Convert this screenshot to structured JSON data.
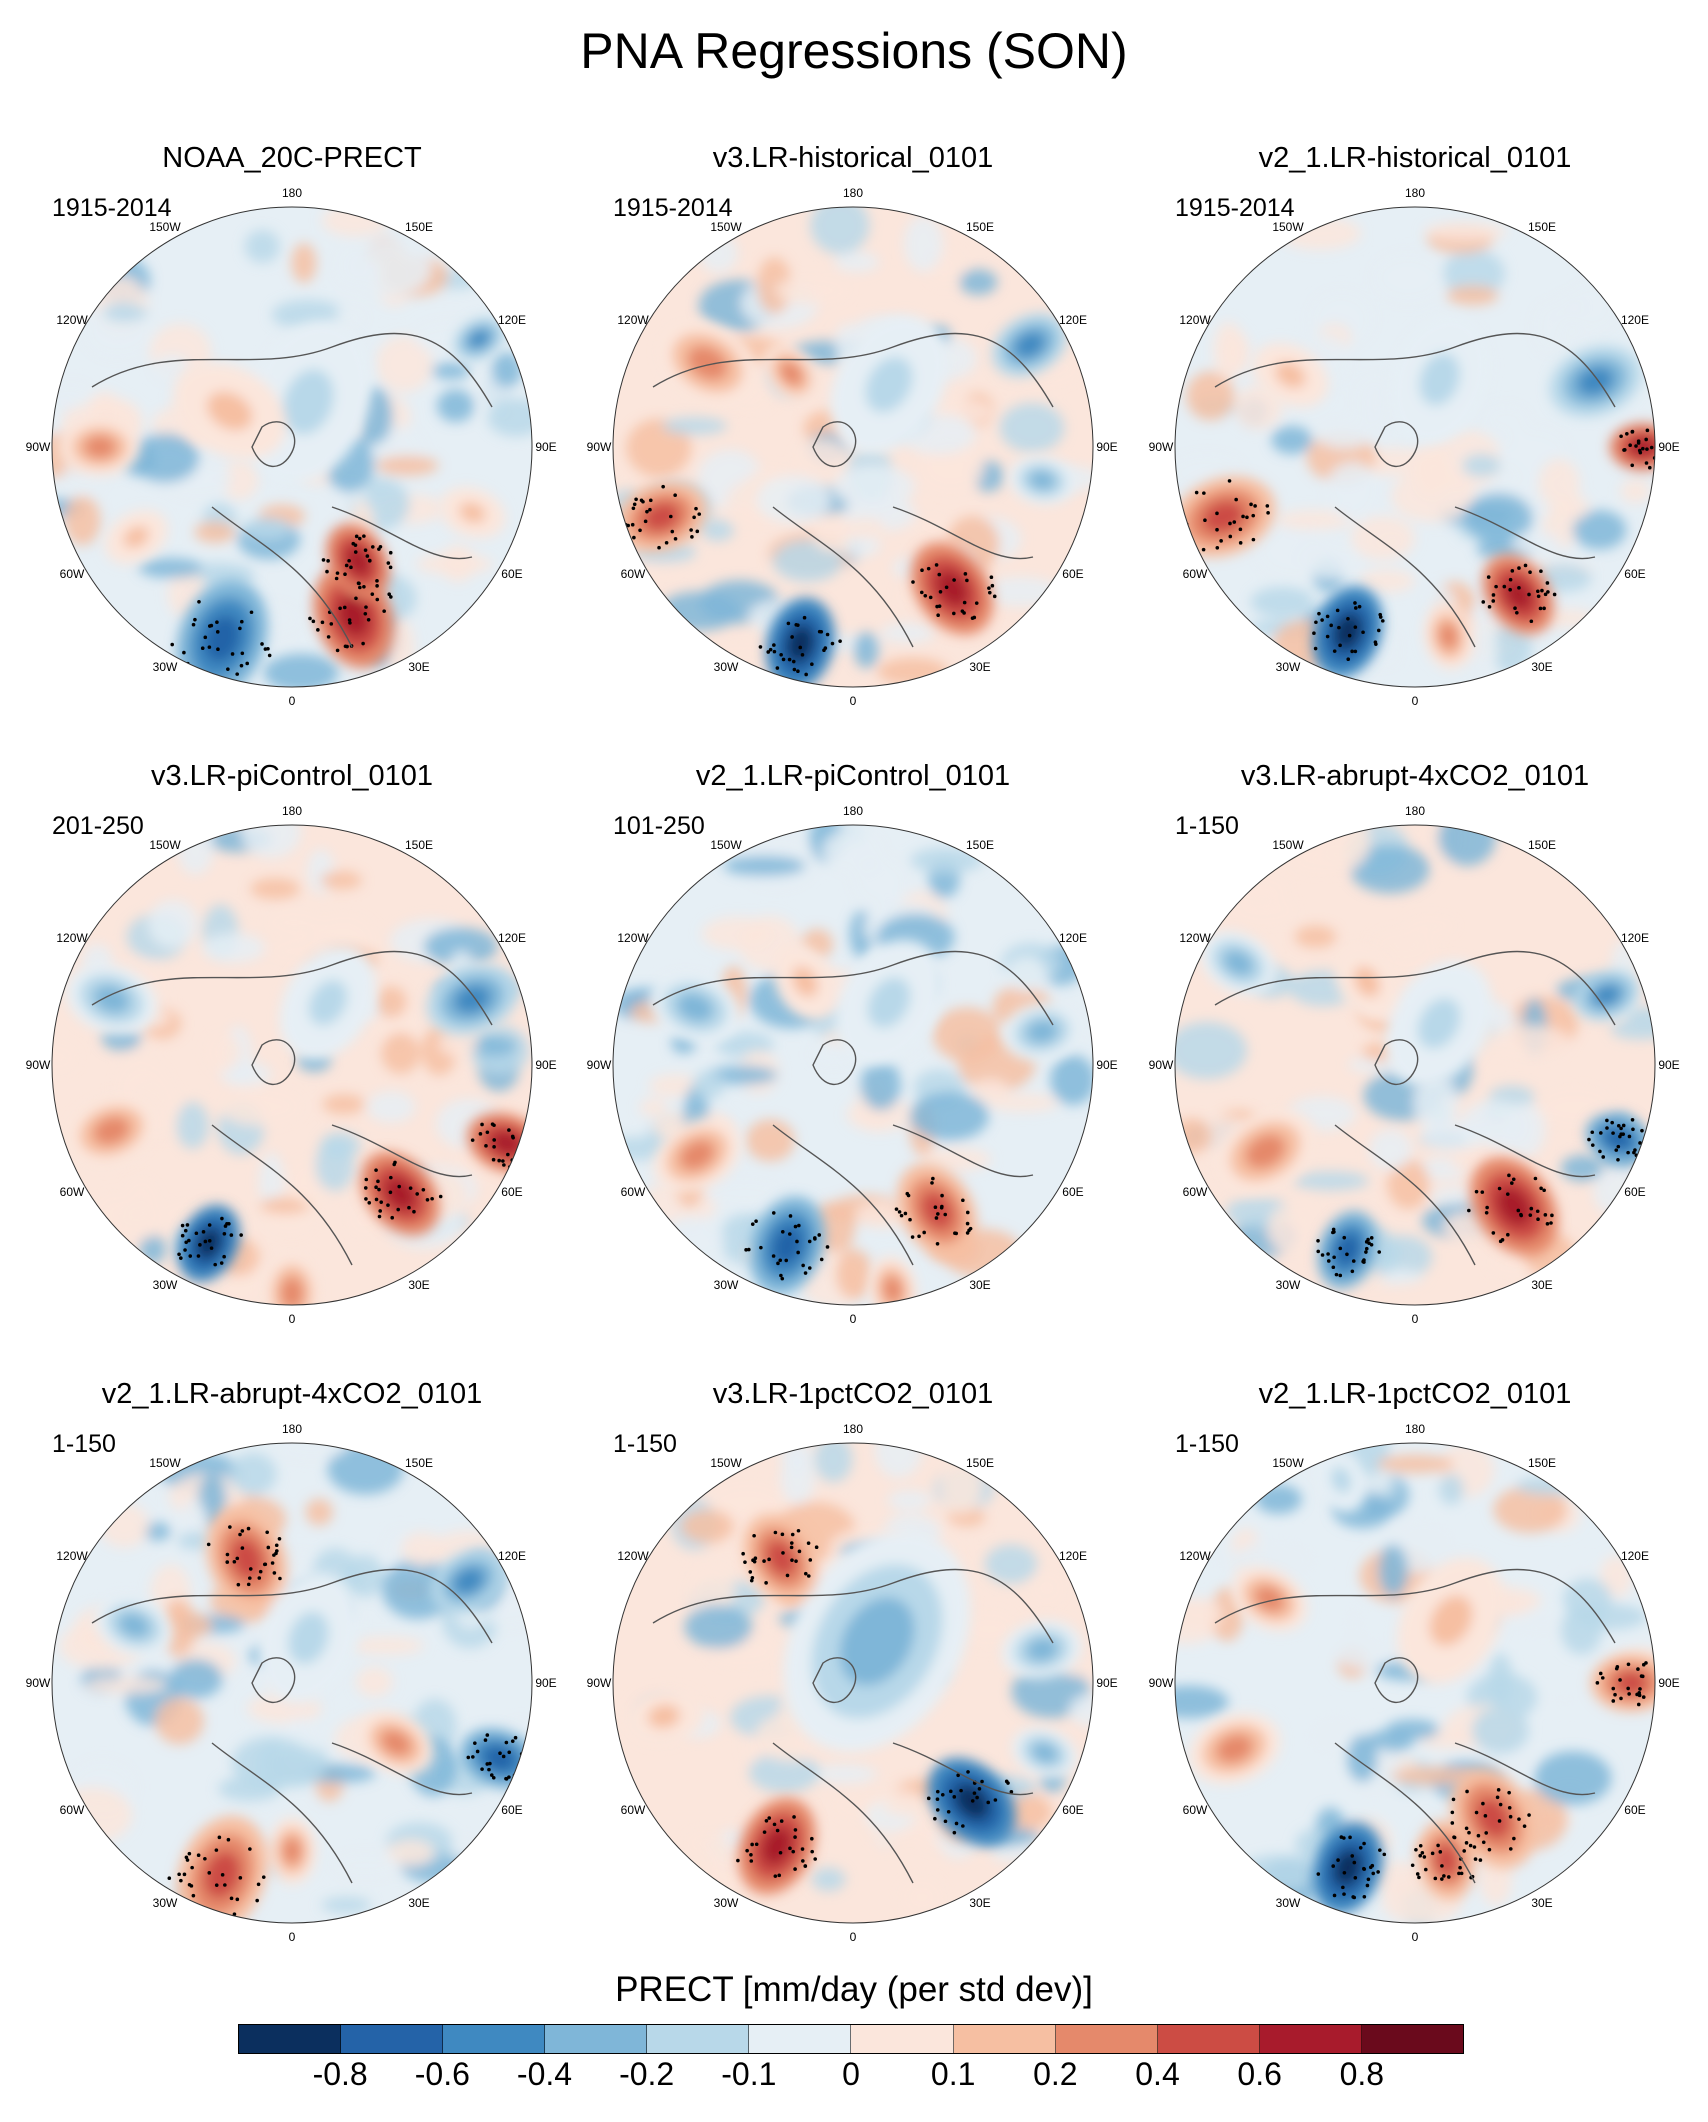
{
  "title": "PNA Regressions (SON)",
  "panels": [
    {
      "name": "NOAA_20C-PRECT",
      "period": "1915-2014"
    },
    {
      "name": "v3.LR-historical_0101",
      "period": "1915-2014"
    },
    {
      "name": "v2_1.LR-historical_0101",
      "period": "1915-2014"
    },
    {
      "name": "v3.LR-piControl_0101",
      "period": "201-250"
    },
    {
      "name": "v2_1.LR-piControl_0101",
      "period": "101-250"
    },
    {
      "name": "v3.LR-abrupt-4xCO2_0101",
      "period": "1-150"
    },
    {
      "name": "v2_1.LR-abrupt-4xCO2_0101",
      "period": "1-150"
    },
    {
      "name": "v3.LR-1pctCO2_0101",
      "period": "1-150"
    },
    {
      "name": "v2_1.LR-1pctCO2_0101",
      "period": "1-150"
    }
  ],
  "longitude_labels": [
    "180",
    "150E",
    "120E",
    "90E",
    "60E",
    "30E",
    "0",
    "30W",
    "60W",
    "90W",
    "120W",
    "150W"
  ],
  "colorbar": {
    "title": "PRECT [mm/day (per std dev)]",
    "ticks": [
      "-0.8",
      "-0.6",
      "-0.4",
      "-0.2",
      "-0.1",
      "0",
      "0.1",
      "0.2",
      "0.4",
      "0.6",
      "0.8"
    ],
    "colors": [
      "#0b2f5e",
      "#2463a8",
      "#3f89c1",
      "#7fb6d8",
      "#b8d8e9",
      "#e6eff5",
      "#fbe6dc",
      "#f6bfa2",
      "#e5896b",
      "#cc4c44",
      "#a81b2c",
      "#6a0a1c"
    ]
  }
}
